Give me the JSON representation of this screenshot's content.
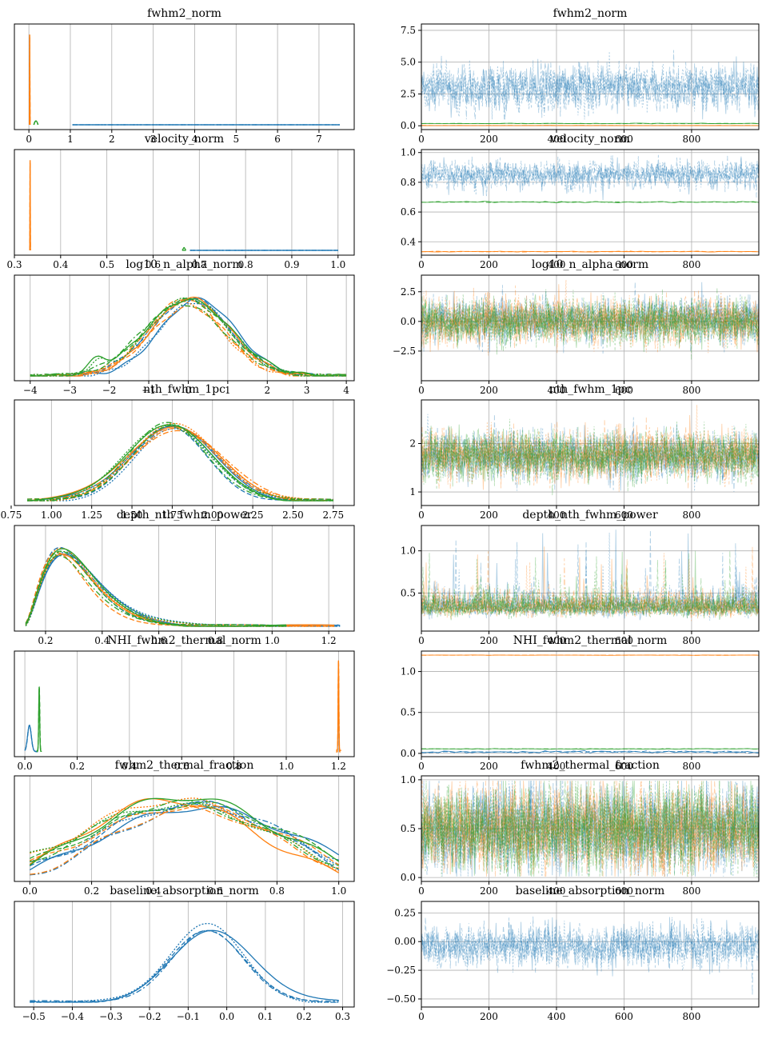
{
  "colors": {
    "blue": "#1f77b4",
    "orange": "#ff7f0e",
    "green": "#2ca02c",
    "grid": "#b0b0b0"
  },
  "chart_data": [
    {
      "type": "line",
      "title": "fwhm2_norm",
      "kind": "kde",
      "xlim": [
        -0.35,
        7.85
      ],
      "xticks": [
        0,
        1,
        2,
        3,
        4,
        5,
        6,
        7
      ],
      "xtick_labels": [
        "0",
        "1",
        "2",
        "3",
        "4",
        "5",
        "6",
        "7"
      ],
      "series": [
        {
          "color": "blue",
          "shape": "flat",
          "range": [
            1.05,
            7.5
          ]
        },
        {
          "color": "orange",
          "shape": "spike",
          "center": 0.02,
          "width": 0.01,
          "height": 0.95
        },
        {
          "color": "green",
          "shape": "flat",
          "range": [
            0.12,
            0.22
          ],
          "height": 0.04
        }
      ]
    },
    {
      "type": "line",
      "title": "fwhm2_norm",
      "kind": "trace",
      "xlim": [
        0,
        999
      ],
      "ylim": [
        -0.3,
        8.0
      ],
      "xticks": [
        0,
        200,
        400,
        600,
        800
      ],
      "xtick_labels": [
        "0",
        "200",
        "400",
        "600",
        "800"
      ],
      "yticks": [
        0.0,
        2.5,
        5.0,
        7.5
      ],
      "ytick_labels": [
        "0.0",
        "2.5",
        "5.0",
        "7.5"
      ],
      "series": [
        {
          "color": "blue",
          "mean": 3.0,
          "sd": 0.9,
          "min": 0.5,
          "max": 7.5,
          "alpha": 0.35
        },
        {
          "color": "orange",
          "mean": 0.02,
          "sd": 0.005,
          "alpha": 0.9
        },
        {
          "color": "green",
          "mean": 0.18,
          "sd": 0.01,
          "alpha": 0.9
        }
      ]
    },
    {
      "type": "line",
      "title": "velocity_norm",
      "kind": "kde",
      "xlim": [
        0.3,
        1.035
      ],
      "xticks": [
        0.3,
        0.4,
        0.5,
        0.6,
        0.7,
        0.8,
        0.9,
        1.0
      ],
      "xtick_labels": [
        "0.3",
        "0.4",
        "0.5",
        "0.6",
        "0.7",
        "0.8",
        "0.9",
        "1.0"
      ],
      "series": [
        {
          "color": "blue",
          "shape": "flat",
          "range": [
            0.68,
            1.0
          ]
        },
        {
          "color": "orange",
          "shape": "spike",
          "center": 0.334,
          "width": 0.0008,
          "height": 0.95
        },
        {
          "color": "green",
          "shape": "spike",
          "center": 0.667,
          "width": 0.004,
          "height": 0.03
        }
      ]
    },
    {
      "type": "line",
      "title": "velocity_norm",
      "kind": "trace",
      "xlim": [
        0,
        999
      ],
      "ylim": [
        0.31,
        1.02
      ],
      "xticks": [
        0,
        200,
        400,
        600,
        800
      ],
      "xtick_labels": [
        "0",
        "200",
        "400",
        "600",
        "800"
      ],
      "yticks": [
        0.4,
        0.6,
        0.8,
        1.0
      ],
      "ytick_labels": [
        "0.4",
        "0.6",
        "0.8",
        "1.0"
      ],
      "series": [
        {
          "color": "blue",
          "mean": 0.85,
          "sd": 0.045,
          "min": 0.68,
          "max": 1.0,
          "alpha": 0.35
        },
        {
          "color": "orange",
          "mean": 0.334,
          "sd": 0.0015,
          "alpha": 0.9
        },
        {
          "color": "green",
          "mean": 0.667,
          "sd": 0.002,
          "alpha": 0.9
        }
      ]
    },
    {
      "type": "line",
      "title": "log10_n_alpha_norm",
      "kind": "kde",
      "xlim": [
        -4.4,
        4.2
      ],
      "xticks": [
        -4,
        -3,
        -2,
        -1,
        0,
        1,
        2,
        3,
        4
      ],
      "xtick_labels": [
        "−4",
        "−3",
        "−2",
        "−1",
        "0",
        "1",
        "2",
        "3",
        "4"
      ],
      "series": [
        {
          "color": "blue",
          "shape": "gauss",
          "center": 0.15,
          "width": 0.95,
          "range": [
            -4.0,
            4.0
          ]
        },
        {
          "color": "orange",
          "shape": "gauss",
          "center": -0.05,
          "width": 1.0,
          "range": [
            -4.0,
            4.0
          ]
        },
        {
          "color": "green",
          "shape": "gauss",
          "center": -0.1,
          "width": 1.05,
          "range": [
            -4.0,
            4.0
          ],
          "bump": [
            -2.3,
            0.2,
            0.15
          ]
        }
      ]
    },
    {
      "type": "line",
      "title": "log10_n_alpha_norm",
      "kind": "trace",
      "xlim": [
        0,
        999
      ],
      "ylim": [
        -5.0,
        3.9
      ],
      "xticks": [
        0,
        200,
        400,
        600,
        800
      ],
      "xtick_labels": [
        "0",
        "200",
        "400",
        "600",
        "800"
      ],
      "yticks": [
        -2.5,
        0.0,
        2.5
      ],
      "ytick_labels": [
        "−2.5",
        "0.0",
        "2.5"
      ],
      "series": [
        {
          "color": "blue",
          "mean": 0.1,
          "sd": 0.9,
          "min": -4.5,
          "max": 3.5,
          "alpha": 0.35
        },
        {
          "color": "orange",
          "mean": 0.0,
          "sd": 0.95,
          "min": -4.5,
          "max": 3.5,
          "alpha": 0.35
        },
        {
          "color": "green",
          "mean": 0.0,
          "sd": 0.95,
          "min": -4.5,
          "max": 3.5,
          "alpha": 0.35
        }
      ]
    },
    {
      "type": "line",
      "title": "nth_fwhm_1pc",
      "kind": "kde",
      "xlim": [
        0.77,
        2.88
      ],
      "xticks": [
        0.75,
        1.0,
        1.25,
        1.5,
        1.75,
        2.0,
        2.25,
        2.5,
        2.75
      ],
      "xtick_labels": [
        "0.75",
        "1.00",
        "1.25",
        "1.50",
        "1.75",
        "2.00",
        "2.25",
        "2.50",
        "2.75"
      ],
      "series": [
        {
          "color": "blue",
          "shape": "gauss",
          "center": 1.75,
          "width": 0.25,
          "range": [
            0.85,
            2.75
          ]
        },
        {
          "color": "orange",
          "shape": "gauss",
          "center": 1.77,
          "width": 0.27,
          "range": [
            0.85,
            2.75
          ]
        },
        {
          "color": "green",
          "shape": "gauss",
          "center": 1.74,
          "width": 0.25,
          "range": [
            0.85,
            2.75
          ]
        }
      ]
    },
    {
      "type": "line",
      "title": "nth_fwhm_1pc",
      "kind": "trace",
      "xlim": [
        0,
        999
      ],
      "ylim": [
        0.72,
        2.9
      ],
      "xticks": [
        0,
        200,
        400,
        600,
        800
      ],
      "xtick_labels": [
        "0",
        "200",
        "400",
        "600",
        "800"
      ],
      "yticks": [
        1,
        2
      ],
      "ytick_labels": [
        "1",
        "2"
      ],
      "series": [
        {
          "color": "blue",
          "mean": 1.75,
          "sd": 0.24,
          "min": 0.8,
          "max": 2.8,
          "alpha": 0.35
        },
        {
          "color": "orange",
          "mean": 1.76,
          "sd": 0.25,
          "min": 0.8,
          "max": 2.8,
          "alpha": 0.35
        },
        {
          "color": "green",
          "mean": 1.75,
          "sd": 0.25,
          "min": 0.8,
          "max": 2.8,
          "alpha": 0.35
        }
      ]
    },
    {
      "type": "line",
      "title": "depth_nth_fwhm_power",
      "kind": "kde",
      "xlim": [
        0.09,
        1.29
      ],
      "xticks": [
        0.2,
        0.4,
        0.6,
        0.8,
        1.0,
        1.2
      ],
      "xtick_labels": [
        "0.2",
        "0.4",
        "0.6",
        "0.8",
        "1.0",
        "1.2"
      ],
      "series": [
        {
          "color": "blue",
          "shape": "skew",
          "center": 0.26,
          "width": 0.08,
          "range": [
            0.13,
            1.24
          ]
        },
        {
          "color": "orange",
          "shape": "skew",
          "center": 0.25,
          "width": 0.075,
          "range": [
            0.13,
            1.22
          ]
        },
        {
          "color": "green",
          "shape": "skew",
          "center": 0.255,
          "width": 0.075,
          "range": [
            0.13,
            1.05
          ]
        }
      ]
    },
    {
      "type": "line",
      "title": "depth_nth_fwhm_power",
      "kind": "trace",
      "xlim": [
        0,
        999
      ],
      "ylim": [
        0.05,
        1.3
      ],
      "xticks": [
        0,
        200,
        400,
        600,
        800
      ],
      "xtick_labels": [
        "0",
        "200",
        "400",
        "600",
        "800"
      ],
      "yticks": [
        0.5,
        1.0
      ],
      "ytick_labels": [
        "0.5",
        "1.0"
      ],
      "series": [
        {
          "color": "blue",
          "mean": 0.33,
          "sd": 0.11,
          "min": 0.12,
          "max": 1.25,
          "alpha": 0.35,
          "skew": true
        },
        {
          "color": "orange",
          "mean": 0.32,
          "sd": 0.1,
          "min": 0.12,
          "max": 1.05,
          "alpha": 0.35,
          "skew": true
        },
        {
          "color": "green",
          "mean": 0.32,
          "sd": 0.1,
          "min": 0.12,
          "max": 1.0,
          "alpha": 0.35,
          "skew": true
        }
      ]
    },
    {
      "type": "line",
      "title": "NHI_fwhm2_thermal_norm",
      "kind": "kde",
      "xlim": [
        -0.04,
        1.26
      ],
      "xticks": [
        0.0,
        0.2,
        0.4,
        0.6,
        0.8,
        1.0,
        1.2
      ],
      "xtick_labels": [
        "0.0",
        "0.2",
        "0.4",
        "0.6",
        "0.8",
        "1.0",
        "1.2"
      ],
      "series": [
        {
          "color": "blue",
          "shape": "gauss",
          "center": 0.018,
          "width": 0.007,
          "height": 0.3,
          "range": [
            0.0,
            0.05
          ]
        },
        {
          "color": "orange",
          "shape": "gauss",
          "center": 1.2,
          "width": 0.0015,
          "height": 0.95,
          "range": [
            1.19,
            1.21
          ]
        },
        {
          "color": "green",
          "shape": "gauss",
          "center": 0.055,
          "width": 0.002,
          "height": 0.7,
          "range": [
            0.045,
            0.065
          ]
        }
      ]
    },
    {
      "type": "line",
      "title": "NHI_fwhm2_thermal_norm",
      "kind": "trace",
      "xlim": [
        0,
        999
      ],
      "ylim": [
        -0.04,
        1.25
      ],
      "xticks": [
        0,
        200,
        400,
        600,
        800
      ],
      "xtick_labels": [
        "0",
        "200",
        "400",
        "600",
        "800"
      ],
      "yticks": [
        0.0,
        0.5,
        1.0
      ],
      "ytick_labels": [
        "0.0",
        "0.5",
        "1.0"
      ],
      "series": [
        {
          "color": "blue",
          "mean": 0.018,
          "sd": 0.006,
          "alpha": 0.9
        },
        {
          "color": "orange",
          "mean": 1.2,
          "sd": 0.001,
          "alpha": 0.9
        },
        {
          "color": "green",
          "mean": 0.055,
          "sd": 0.002,
          "alpha": 0.9
        }
      ]
    },
    {
      "type": "line",
      "title": "fwhm2_thermal_fraction",
      "kind": "kde",
      "xlim": [
        -0.05,
        1.05
      ],
      "xticks": [
        0.0,
        0.2,
        0.4,
        0.6,
        0.8,
        1.0
      ],
      "xtick_labels": [
        "0.0",
        "0.2",
        "0.4",
        "0.6",
        "0.8",
        "1.0"
      ],
      "series": [
        {
          "color": "blue",
          "shape": "wide",
          "center": 0.55,
          "width": 0.32,
          "range": [
            0.0,
            1.0
          ]
        },
        {
          "color": "orange",
          "shape": "wide",
          "center": 0.5,
          "width": 0.32,
          "range": [
            0.0,
            1.0
          ]
        },
        {
          "color": "green",
          "shape": "wide",
          "center": 0.48,
          "width": 0.33,
          "range": [
            0.0,
            1.0
          ]
        }
      ]
    },
    {
      "type": "line",
      "title": "fwhm2_thermal_fraction",
      "kind": "trace",
      "xlim": [
        0,
        999
      ],
      "ylim": [
        -0.04,
        1.04
      ],
      "xticks": [
        0,
        200,
        400,
        600,
        800
      ],
      "xtick_labels": [
        "0",
        "200",
        "400",
        "600",
        "800"
      ],
      "yticks": [
        0.0,
        0.5,
        1.0
      ],
      "ytick_labels": [
        "0.0",
        "0.5",
        "1.0"
      ],
      "series": [
        {
          "color": "blue",
          "mean": 0.5,
          "sd": 0.22,
          "min": 0.01,
          "max": 0.99,
          "alpha": 0.35
        },
        {
          "color": "orange",
          "mean": 0.5,
          "sd": 0.22,
          "min": 0.01,
          "max": 0.99,
          "alpha": 0.35
        },
        {
          "color": "green",
          "mean": 0.5,
          "sd": 0.22,
          "min": 0.01,
          "max": 0.99,
          "alpha": 0.35
        }
      ]
    },
    {
      "type": "line",
      "title": "baseline_absorption_norm",
      "kind": "kde",
      "xlim": [
        -0.55,
        0.33
      ],
      "xticks": [
        -0.5,
        -0.4,
        -0.3,
        -0.2,
        -0.1,
        0.0,
        0.1,
        0.2,
        0.3
      ],
      "xtick_labels": [
        "−0.5",
        "−0.4",
        "−0.3",
        "−0.2",
        "−0.1",
        "0.0",
        "0.1",
        "0.2",
        "0.3"
      ],
      "series": [
        {
          "color": "blue",
          "shape": "gauss",
          "center": -0.04,
          "width": 0.1,
          "range": [
            -0.51,
            0.29
          ]
        }
      ]
    },
    {
      "type": "line",
      "title": "baseline_absorption_norm",
      "kind": "trace",
      "xlim": [
        0,
        999
      ],
      "ylim": [
        -0.57,
        0.35
      ],
      "xticks": [
        0,
        200,
        400,
        600,
        800
      ],
      "xtick_labels": [
        "0",
        "200",
        "400",
        "600",
        "800"
      ],
      "yticks": [
        -0.5,
        -0.25,
        0.0,
        0.25
      ],
      "ytick_labels": [
        "−0.50",
        "−0.25",
        "0.00",
        "0.25"
      ],
      "series": [
        {
          "color": "blue",
          "mean": -0.04,
          "sd": 0.09,
          "min": -0.5,
          "max": 0.3,
          "alpha": 0.35
        }
      ]
    }
  ]
}
